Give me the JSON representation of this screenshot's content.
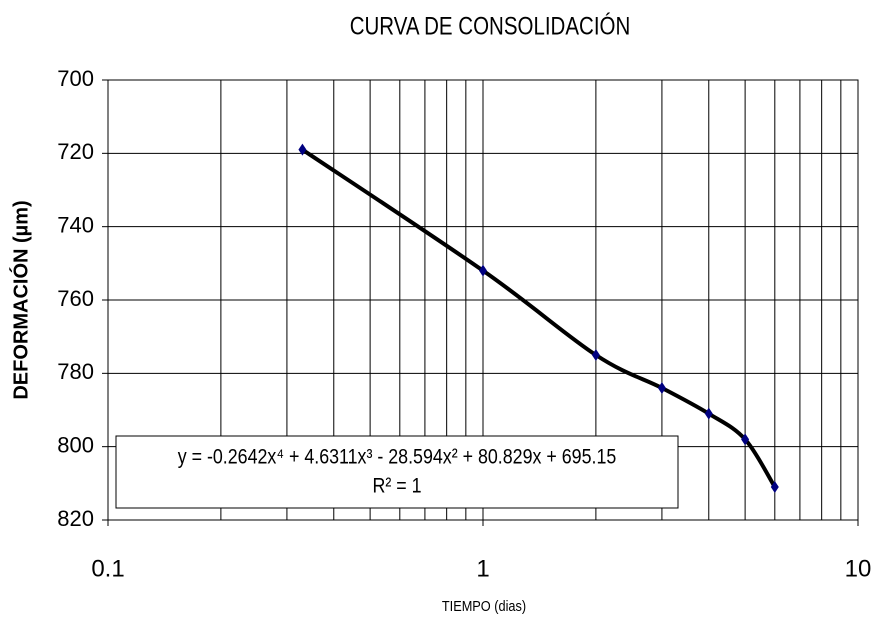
{
  "chart_data": {
    "type": "line",
    "title": "CURVA DE CONSOLIDACIÓN",
    "x_label": "TIEMPO (dias)",
    "y_label": "DEFORMACIÓN (µm)",
    "x": [
      0.33,
      1,
      2,
      3,
      4,
      5,
      6
    ],
    "series": [
      {
        "name": "Deformación",
        "color": "#000080",
        "line_color": "#000000",
        "values": [
          719,
          752,
          775,
          784,
          791,
          798,
          811
        ]
      }
    ],
    "x_log": true,
    "y_inverted": true,
    "xlim": [
      0.1,
      10
    ],
    "xticks": [
      0.1,
      1,
      10
    ],
    "ylim": [
      700,
      820
    ],
    "yticks": [
      700,
      720,
      740,
      760,
      780,
      800,
      820
    ],
    "grid": true,
    "minor_grid": true,
    "annotations": [
      "y = -0.2642x⁴ + 4.6311x³ - 28.594x² + 80.829x + 695.15",
      "R² = 1"
    ]
  }
}
